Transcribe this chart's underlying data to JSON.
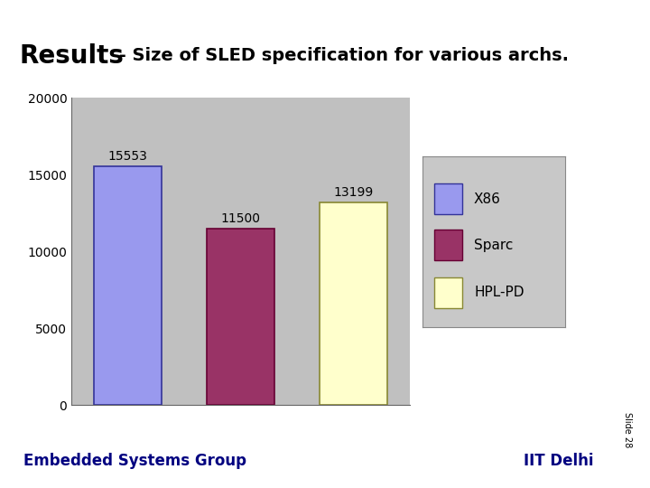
{
  "title_bold": "Results",
  "title_rest": " - Size of SLED specification for various archs.",
  "categories": [
    "X86",
    "Sparc",
    "HPL-PD"
  ],
  "values": [
    15553,
    11500,
    13199
  ],
  "bar_colors": [
    "#9999ee",
    "#993366",
    "#ffffcc"
  ],
  "bar_edge_colors": [
    "#333399",
    "#660033",
    "#888833"
  ],
  "legend_labels": [
    "X86",
    "Sparc",
    "HPL-PD"
  ],
  "legend_colors": [
    "#9999ee",
    "#993366",
    "#ffffcc"
  ],
  "legend_edge_colors": [
    "#333399",
    "#660033",
    "#888833"
  ],
  "ylim": [
    0,
    20000
  ],
  "yticks": [
    0,
    5000,
    10000,
    15000,
    20000
  ],
  "chart_bg": "#b8b8b8",
  "plot_bg": "#b8b8b8",
  "inner_plot_bg": "#c8c8c8",
  "outer_bg": "#ffffff",
  "footer_line_color": "#cc8800",
  "footer_left": "Embedded Systems Group",
  "footer_right": "IIT Delhi",
  "footer_color": "#000080",
  "slide_text": "Slide 28",
  "title_bold_fontsize": 20,
  "title_rest_fontsize": 14,
  "bar_label_fontsize": 10,
  "legend_fontsize": 11,
  "axis_tick_fontsize": 10,
  "footer_fontsize": 12
}
